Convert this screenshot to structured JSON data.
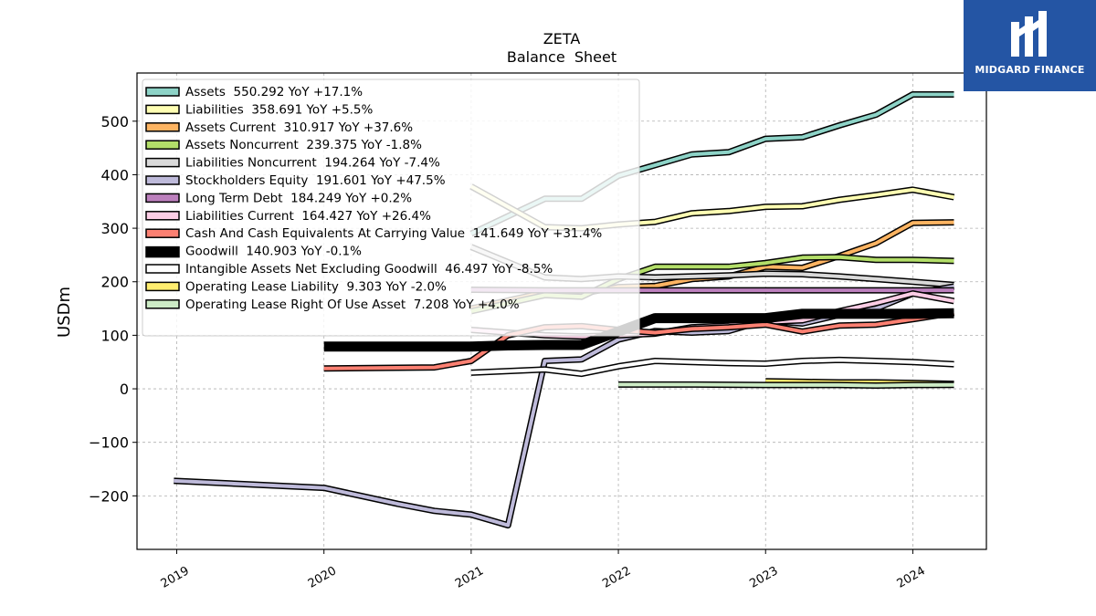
{
  "brand": {
    "name": "MIDGARD FINANCE",
    "color": "#2455a4"
  },
  "chart_data": {
    "type": "line",
    "title": "ZETA",
    "subtitle": "Balance  Sheet",
    "xlabel": "",
    "ylabel": "USDm",
    "xlim": [
      2018.73,
      2024.5
    ],
    "ylim": [
      -300,
      590
    ],
    "xticks": [
      2019,
      2020,
      2021,
      2022,
      2023,
      2024
    ],
    "yticks": [
      -200,
      -100,
      0,
      100,
      200,
      300,
      400,
      500
    ],
    "grid": true,
    "legend_position": "top-left",
    "series": [
      {
        "name": "Assets",
        "legend": "Assets  550.292 YoY +17.1%",
        "color": "#8dd3c7",
        "width": 4,
        "x": [
          2021.0,
          2021.5,
          2021.75,
          2022.0,
          2022.25,
          2022.5,
          2022.75,
          2023.0,
          2023.25,
          2023.5,
          2023.75,
          2024.0,
          2024.28
        ],
        "y": [
          290,
          355,
          355,
          398,
          418,
          438,
          442,
          467,
          470,
          492,
          512,
          550,
          550
        ]
      },
      {
        "name": "Liabilities",
        "legend": "Liabilities  358.691 YoY +5.5%",
        "color": "#ffffb3",
        "width": 4,
        "x": [
          2021.0,
          2021.5,
          2021.75,
          2022.0,
          2022.25,
          2022.5,
          2022.75,
          2023.0,
          2023.25,
          2023.5,
          2023.75,
          2024.0,
          2024.28
        ],
        "y": [
          378,
          302,
          300,
          307,
          312,
          328,
          332,
          340,
          341,
          353,
          362,
          372,
          358
        ]
      },
      {
        "name": "Assets Current",
        "legend": "Assets Current  310.917 YoY +37.6%",
        "color": "#fdb462",
        "width": 4,
        "x": [
          2021.0,
          2021.5,
          2021.75,
          2022.0,
          2022.25,
          2022.5,
          2022.75,
          2023.0,
          2023.25,
          2023.5,
          2023.75,
          2024.0,
          2024.28
        ],
        "y": [
          150,
          180,
          178,
          190,
          192,
          205,
          210,
          228,
          226,
          248,
          272,
          310,
          311
        ]
      },
      {
        "name": "Assets Noncurrent",
        "legend": "Assets Noncurrent  239.375 YoY -1.8%",
        "color": "#b3de69",
        "width": 4,
        "x": [
          2021.0,
          2021.5,
          2021.75,
          2022.0,
          2022.25,
          2022.5,
          2022.75,
          2023.0,
          2023.25,
          2023.5,
          2023.75,
          2024.0,
          2024.28
        ],
        "y": [
          145,
          175,
          172,
          205,
          228,
          228,
          228,
          235,
          245,
          246,
          241,
          241,
          239
        ]
      },
      {
        "name": "Liabilities Noncurrent",
        "legend": "Liabilities Noncurrent  194.264 YoY -7.4%",
        "color": "#d9d9d9",
        "width": 4,
        "x": [
          2021.0,
          2021.5,
          2021.75,
          2022.0,
          2022.25,
          2022.5,
          2022.75,
          2023.0,
          2023.25,
          2023.5,
          2023.75,
          2024.0,
          2024.28
        ],
        "y": [
          265,
          208,
          205,
          210,
          208,
          210,
          212,
          215,
          214,
          210,
          205,
          200,
          194
        ]
      },
      {
        "name": "Stockholders Equity",
        "legend": "Stockholders Equity  191.601 YoY +47.5%",
        "color": "#bebada",
        "width": 4,
        "x": [
          2018.98,
          2020.0,
          2020.25,
          2020.5,
          2020.75,
          2021.0,
          2021.25,
          2021.5,
          2021.75,
          2022.0,
          2022.25,
          2022.5,
          2022.75,
          2023.0,
          2023.25,
          2023.5,
          2023.75,
          2024.0,
          2024.28
        ],
        "y": [
          -172,
          -185,
          -200,
          -215,
          -228,
          -235,
          -255,
          52,
          55,
          92,
          108,
          105,
          108,
          128,
          122,
          138,
          150,
          178,
          191
        ]
      },
      {
        "name": "Long Term Debt",
        "legend": "Long Term Debt  184.249 YoY +0.2%",
        "color": "#bc80bd",
        "width": 4,
        "x": [
          2021.0,
          2021.5,
          2021.75,
          2022.0,
          2022.25,
          2022.5,
          2022.75,
          2023.0,
          2023.25,
          2023.5,
          2023.75,
          2024.0,
          2024.28
        ],
        "y": [
          185,
          184,
          184,
          184,
          184,
          184,
          184,
          184,
          184,
          184,
          184,
          184,
          184
        ]
      },
      {
        "name": "Liabilities Current",
        "legend": "Liabilities Current  164.427 YoY +26.4%",
        "color": "#fccde5",
        "width": 4,
        "x": [
          2021.0,
          2021.5,
          2021.75,
          2022.0,
          2022.25,
          2022.5,
          2022.75,
          2023.0,
          2023.25,
          2023.5,
          2023.75,
          2024.0,
          2024.28
        ],
        "y": [
          110,
          100,
          98,
          100,
          103,
          115,
          118,
          125,
          128,
          145,
          160,
          178,
          164
        ]
      },
      {
        "name": "Cash And Cash Equivalents At Carrying Value",
        "legend": "Cash And Cash Equivalents At Carrying Value  141.649 YoY +31.4%",
        "color": "#fb8072",
        "width": 4,
        "x": [
          2020.0,
          2020.75,
          2021.0,
          2021.25,
          2021.5,
          2021.75,
          2022.0,
          2022.25,
          2022.5,
          2022.75,
          2023.0,
          2023.25,
          2023.5,
          2023.75,
          2024.0,
          2024.28
        ],
        "y": [
          38,
          40,
          52,
          100,
          115,
          117,
          110,
          105,
          112,
          115,
          120,
          107,
          118,
          120,
          130,
          142
        ]
      },
      {
        "name": "Goodwill",
        "legend": "Goodwill  140.903 YoY -0.1%",
        "color": "#000000",
        "width": 8,
        "x": [
          2020.0,
          2020.75,
          2021.0,
          2021.25,
          2021.5,
          2021.75,
          2022.0,
          2022.25,
          2022.5,
          2022.75,
          2023.0,
          2023.25,
          2023.5,
          2023.75,
          2024.0,
          2024.28
        ],
        "y": [
          79,
          79,
          79,
          81,
          82,
          82,
          107,
          132,
          132,
          132,
          132,
          140,
          140,
          140,
          140,
          141
        ]
      },
      {
        "name": "Intangible Assets Net Excluding Goodwill",
        "legend": "Intangible Assets Net Excluding Goodwill  46.497 YoY -8.5%",
        "color": "#ffffff",
        "width": 4,
        "x": [
          2021.0,
          2021.5,
          2021.75,
          2022.0,
          2022.25,
          2022.5,
          2022.75,
          2023.0,
          2023.25,
          2023.5,
          2023.75,
          2024.0,
          2024.28
        ],
        "y": [
          30,
          36,
          28,
          42,
          52,
          50,
          48,
          47,
          52,
          54,
          52,
          50,
          46
        ]
      },
      {
        "name": "Operating Lease Liability",
        "legend": "Operating Lease Liability  9.303 YoY -2.0%",
        "color": "#ffed6f",
        "width": 4,
        "x": [
          2023.0,
          2023.25,
          2023.5,
          2023.75,
          2024.0,
          2024.28
        ],
        "y": [
          14,
          13,
          12,
          12,
          11,
          9.3
        ]
      },
      {
        "name": "Operating Lease Right Of Use Asset",
        "legend": "Operating Lease Right Of Use Asset  7.208 YoY +4.0%",
        "color": "#ccebc5",
        "width": 4,
        "x": [
          2022.0,
          2022.5,
          2023.0,
          2023.5,
          2023.75,
          2024.0,
          2024.28
        ],
        "y": [
          8,
          8,
          7,
          7,
          6,
          7,
          7.2
        ]
      }
    ]
  }
}
